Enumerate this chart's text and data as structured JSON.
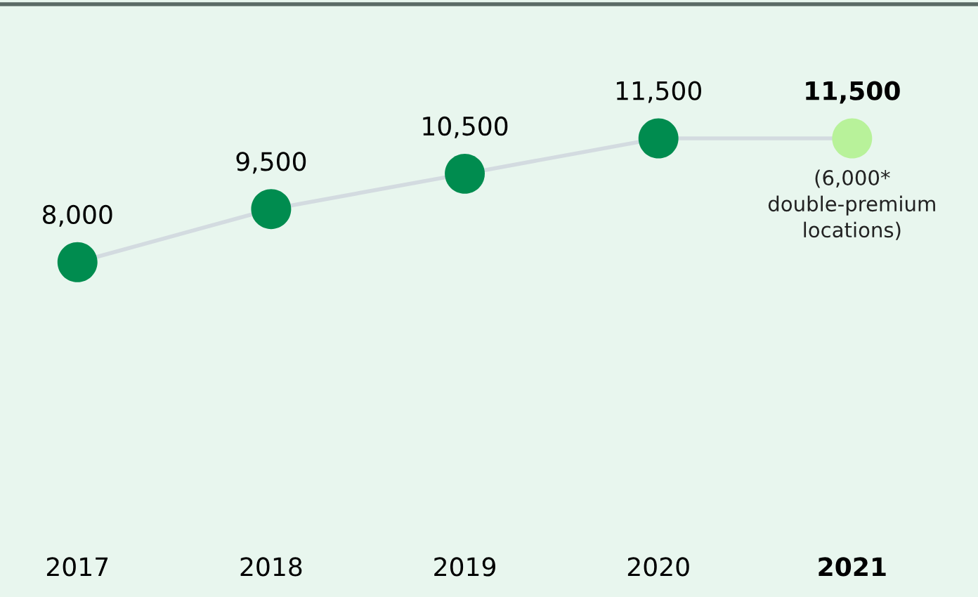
{
  "chart_data": {
    "type": "line",
    "categories": [
      "2017",
      "2018",
      "2019",
      "2020",
      "2021"
    ],
    "series": [
      {
        "color": "#d3dbe0",
        "colors": [
          "#008c4f",
          "#008c4f",
          "#008c4f",
          "#008c4f",
          "#b8f29a"
        ],
        "values": [
          8000,
          9500,
          10500,
          11500,
          11500
        ],
        "value_labels": [
          "8,000",
          "9,500",
          "10,500",
          "11,500",
          "11,500"
        ]
      }
    ],
    "tick_labels": "x",
    "marker": "circle",
    "line_style": "solid",
    "annotations": [
      {
        "text": "(6,000*\ndouble-premium\nlocations)",
        "x": "2021",
        "y": 11500
      }
    ]
  }
}
